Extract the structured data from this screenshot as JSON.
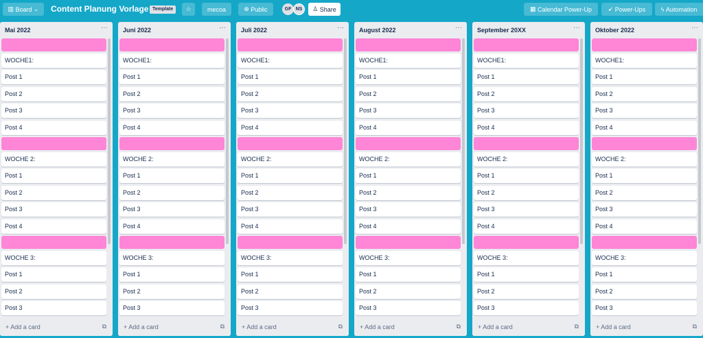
{
  "header": {
    "board_button": "Board",
    "title": "Content Planung Vorlage",
    "badge": "Template",
    "workspace": "mecoa",
    "visibility": "Public",
    "avatars": [
      "GF",
      "NS"
    ],
    "share": "Share",
    "right_buttons": [
      "Calendar Power-Up",
      "Power-Ups",
      "Automation"
    ]
  },
  "lists": [
    {
      "title": "Mai 2022",
      "weeks": [
        {
          "title": "WOCHE1:",
          "posts": [
            "Post 1",
            "Post 2",
            "Post 3",
            "Post 4"
          ]
        },
        {
          "title": "WOCHE 2:",
          "posts": [
            "Post 1",
            "Post 2",
            "Post 3",
            "Post 4"
          ]
        },
        {
          "title": "WOCHE 3:",
          "posts": [
            "Post 1",
            "Post 2",
            "Post 3"
          ]
        }
      ],
      "add_card": "Add a card"
    },
    {
      "title": "Juni 2022",
      "weeks": [
        {
          "title": "WOCHE1:",
          "posts": [
            "Post 1",
            "Post 2",
            "Post 3",
            "Post 4"
          ]
        },
        {
          "title": "WOCHE 2:",
          "posts": [
            "Post 1",
            "Post 2",
            "Post 3",
            "Post 4"
          ]
        },
        {
          "title": "WOCHE 3:",
          "posts": [
            "Post 1",
            "Post 2",
            "Post 3"
          ]
        }
      ],
      "add_card": "Add a card"
    },
    {
      "title": "Juli 2022",
      "weeks": [
        {
          "title": "WOCHE1:",
          "posts": [
            "Post 1",
            "Post 2",
            "Post 3",
            "Post 4"
          ]
        },
        {
          "title": "WOCHE 2:",
          "posts": [
            "Post 1",
            "Post 2",
            "Post 3",
            "Post 4"
          ]
        },
        {
          "title": "WOCHE 3:",
          "posts": [
            "Post 1",
            "Post 2",
            "Post 3"
          ]
        }
      ],
      "add_card": "Add a card"
    },
    {
      "title": "August 2022",
      "weeks": [
        {
          "title": "WOCHE1:",
          "posts": [
            "Post 1",
            "Post 2",
            "Post 3",
            "Post 4"
          ]
        },
        {
          "title": "WOCHE 2:",
          "posts": [
            "Post 1",
            "Post 2",
            "Post 3",
            "Post 4"
          ]
        },
        {
          "title": "WOCHE 3:",
          "posts": [
            "Post 1",
            "Post 2",
            "Post 3"
          ]
        }
      ],
      "add_card": "Add a card"
    },
    {
      "title": "September 20XX",
      "weeks": [
        {
          "title": "WOCHE1:",
          "posts": [
            "Post 1",
            "Post 2",
            "Post 3",
            "Post 4"
          ]
        },
        {
          "title": "WOCHE 2:",
          "posts": [
            "Post 1",
            "Post 2",
            "Post 3",
            "Post 4"
          ]
        },
        {
          "title": "WOCHE 3:",
          "posts": [
            "Post 1",
            "Post 2",
            "Post 3"
          ]
        }
      ],
      "add_card": "Add a card"
    },
    {
      "title": "Oktober 2022",
      "weeks": [
        {
          "title": "WOCHE1:",
          "posts": [
            "Post 1",
            "Post 2",
            "Post 3",
            "Post 4"
          ]
        },
        {
          "title": "WOCHE 2:",
          "posts": [
            "Post 1",
            "Post 2",
            "Post 3",
            "Post 4"
          ]
        },
        {
          "title": "WOCHE 3:",
          "posts": [
            "Post 1",
            "Post 2",
            "Post 3"
          ]
        }
      ],
      "add_card": "Add a card"
    }
  ]
}
